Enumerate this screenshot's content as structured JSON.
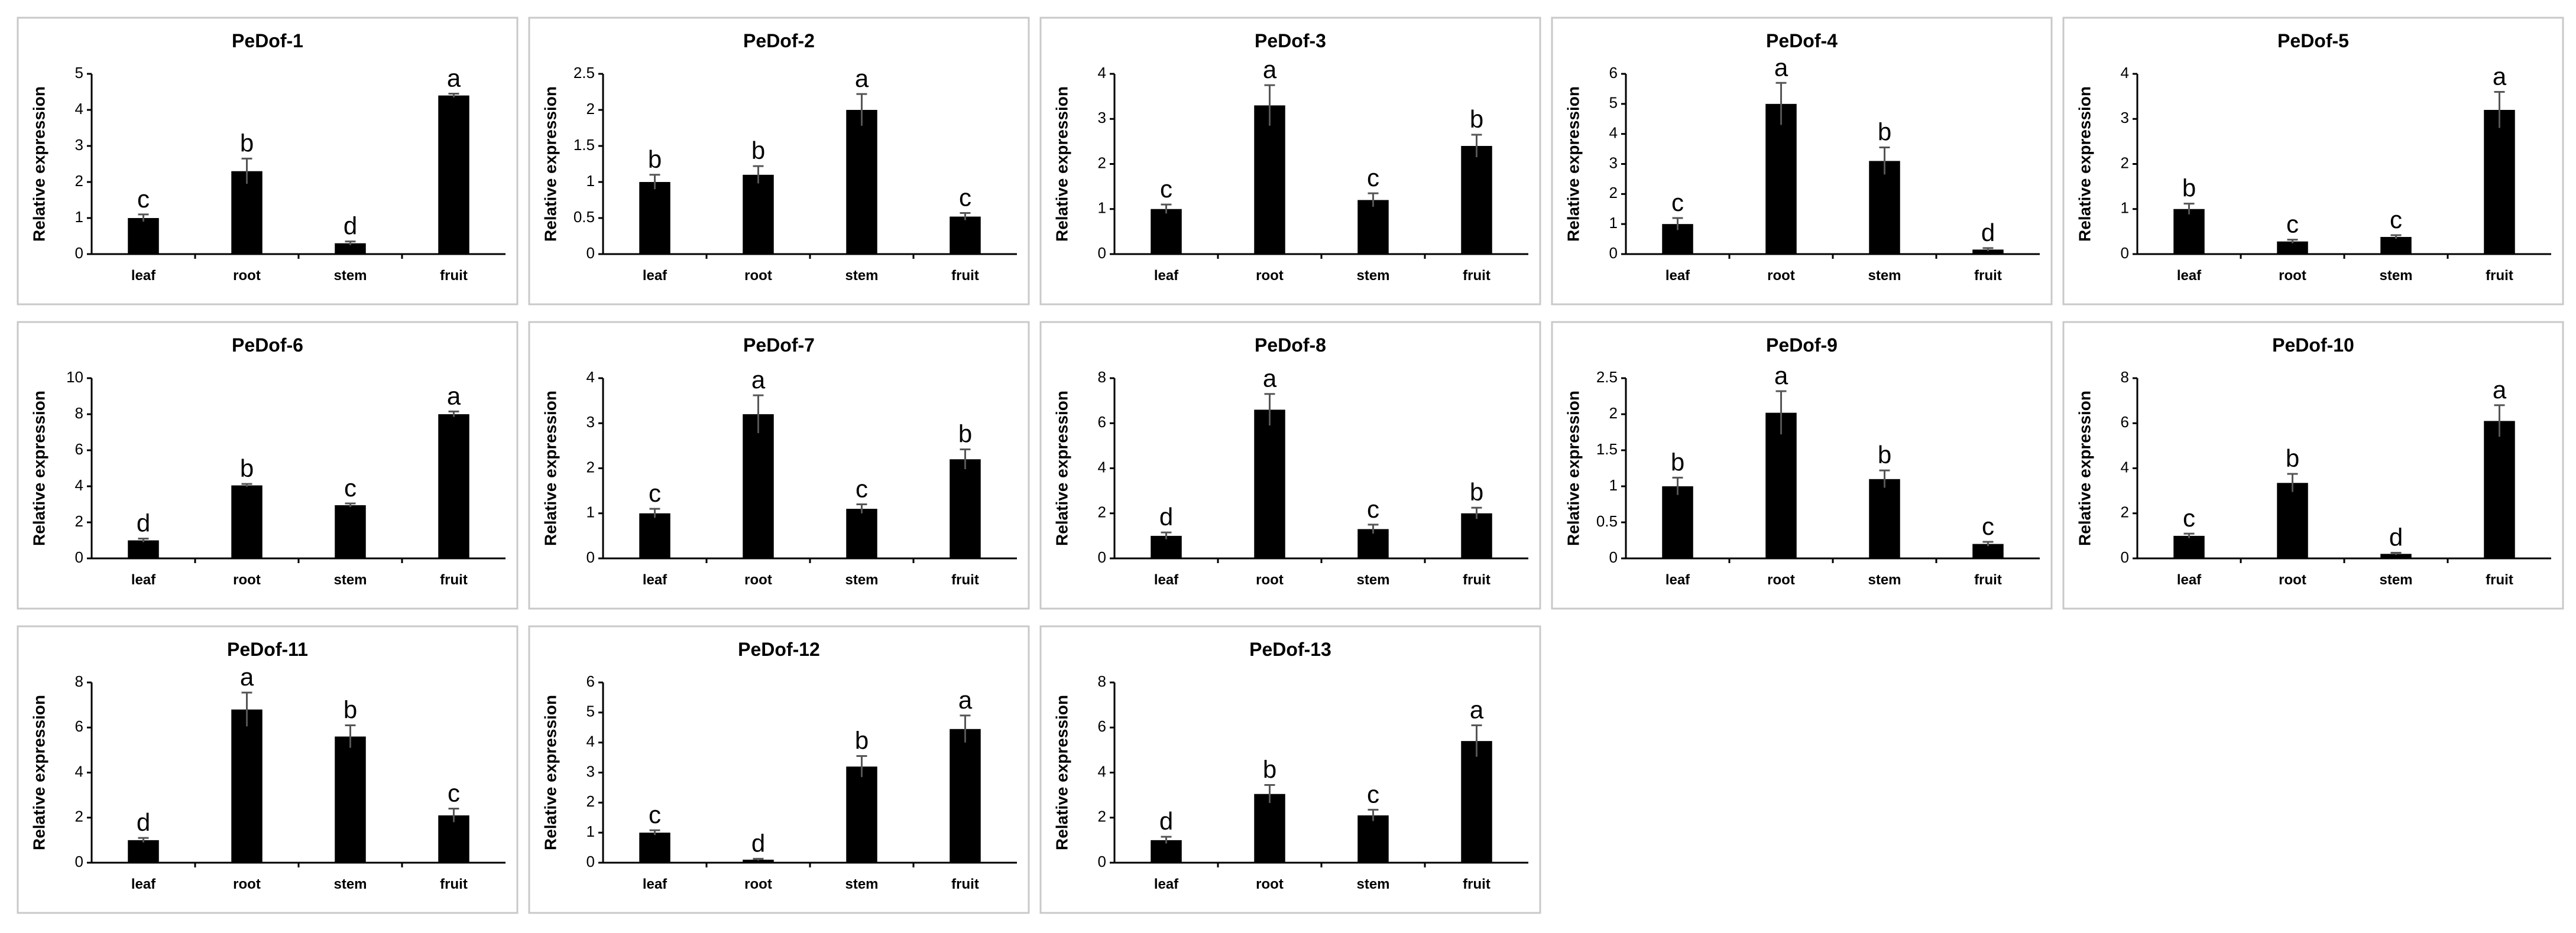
{
  "chart_data": [
    {
      "type": "bar",
      "title": "PeDof-1",
      "ylabel": "Relative expression",
      "xlabel": "",
      "categories": [
        "leaf",
        "root",
        "stem",
        "fruit"
      ],
      "values": [
        1.0,
        2.3,
        0.3,
        4.4
      ],
      "errors": [
        0.1,
        0.35,
        0.05,
        0.05
      ],
      "letters": [
        "c",
        "b",
        "d",
        "a"
      ],
      "ylim": [
        0,
        5
      ],
      "yticks": [
        "0",
        "1",
        "2",
        "3",
        "4",
        "5"
      ],
      "ytick_values": [
        0,
        1,
        2,
        3,
        4,
        5
      ]
    },
    {
      "type": "bar",
      "title": "PeDof-2",
      "ylabel": "Relative expression",
      "xlabel": "",
      "categories": [
        "leaf",
        "root",
        "stem",
        "fruit"
      ],
      "values": [
        1.0,
        1.1,
        2.0,
        0.52
      ],
      "errors": [
        0.1,
        0.12,
        0.22,
        0.05
      ],
      "letters": [
        "b",
        "b",
        "a",
        "c"
      ],
      "ylim": [
        0,
        2.5
      ],
      "yticks": [
        "0",
        "0.5",
        "1",
        "1.5",
        "2",
        "2.5"
      ],
      "ytick_values": [
        0,
        0.5,
        1,
        1.5,
        2,
        2.5
      ]
    },
    {
      "type": "bar",
      "title": "PeDof-3",
      "ylabel": "Relative expression",
      "xlabel": "",
      "categories": [
        "leaf",
        "root",
        "stem",
        "fruit"
      ],
      "values": [
        1.0,
        3.3,
        1.2,
        2.4
      ],
      "errors": [
        0.1,
        0.45,
        0.15,
        0.25
      ],
      "letters": [
        "c",
        "a",
        "c",
        "b"
      ],
      "ylim": [
        0,
        4
      ],
      "yticks": [
        "0",
        "1",
        "2",
        "3",
        "4"
      ],
      "ytick_values": [
        0,
        1,
        2,
        3,
        4
      ]
    },
    {
      "type": "bar",
      "title": "PeDof-4",
      "ylabel": "Relative expression",
      "xlabel": "",
      "categories": [
        "leaf",
        "root",
        "stem",
        "fruit"
      ],
      "values": [
        1.0,
        5.0,
        3.1,
        0.15
      ],
      "errors": [
        0.2,
        0.7,
        0.45,
        0.05
      ],
      "letters": [
        "c",
        "a",
        "b",
        "d"
      ],
      "ylim": [
        0,
        6
      ],
      "yticks": [
        "0",
        "1",
        "2",
        "3",
        "4",
        "5",
        "6"
      ],
      "ytick_values": [
        0,
        1,
        2,
        3,
        4,
        5,
        6
      ]
    },
    {
      "type": "bar",
      "title": "PeDof-5",
      "ylabel": "Relative expression",
      "xlabel": "",
      "categories": [
        "leaf",
        "root",
        "stem",
        "fruit"
      ],
      "values": [
        1.0,
        0.28,
        0.38,
        3.2
      ],
      "errors": [
        0.12,
        0.04,
        0.04,
        0.4
      ],
      "letters": [
        "b",
        "c",
        "c",
        "a"
      ],
      "ylim": [
        0,
        4
      ],
      "yticks": [
        "0",
        "1",
        "2",
        "3",
        "4"
      ],
      "ytick_values": [
        0,
        1,
        2,
        3,
        4
      ]
    },
    {
      "type": "bar",
      "title": "PeDof-6",
      "ylabel": "Relative expression",
      "xlabel": "",
      "categories": [
        "leaf",
        "root",
        "stem",
        "fruit"
      ],
      "values": [
        1.0,
        4.05,
        2.95,
        8.0
      ],
      "errors": [
        0.1,
        0.08,
        0.1,
        0.15
      ],
      "letters": [
        "d",
        "b",
        "c",
        "a"
      ],
      "ylim": [
        0,
        10
      ],
      "yticks": [
        "0",
        "2",
        "4",
        "6",
        "8",
        "10"
      ],
      "ytick_values": [
        0,
        2,
        4,
        6,
        8,
        10
      ]
    },
    {
      "type": "bar",
      "title": "PeDof-7",
      "ylabel": "Relative expression",
      "xlabel": "",
      "categories": [
        "leaf",
        "root",
        "stem",
        "fruit"
      ],
      "values": [
        1.0,
        3.2,
        1.1,
        2.2
      ],
      "errors": [
        0.1,
        0.42,
        0.1,
        0.22
      ],
      "letters": [
        "c",
        "a",
        "c",
        "b"
      ],
      "ylim": [
        0,
        4
      ],
      "yticks": [
        "0",
        "1",
        "2",
        "3",
        "4"
      ],
      "ytick_values": [
        0,
        1,
        2,
        3,
        4
      ]
    },
    {
      "type": "bar",
      "title": "PeDof-8",
      "ylabel": "Relative expression",
      "xlabel": "",
      "categories": [
        "leaf",
        "root",
        "stem",
        "fruit"
      ],
      "values": [
        1.0,
        6.6,
        1.3,
        2.0
      ],
      "errors": [
        0.15,
        0.7,
        0.2,
        0.25
      ],
      "letters": [
        "d",
        "a",
        "c",
        "b"
      ],
      "ylim": [
        0,
        8
      ],
      "yticks": [
        "0",
        "2",
        "4",
        "6",
        "8"
      ],
      "ytick_values": [
        0,
        2,
        4,
        6,
        8
      ]
    },
    {
      "type": "bar",
      "title": "PeDof-9",
      "ylabel": "Relative expression",
      "xlabel": "",
      "categories": [
        "leaf",
        "root",
        "stem",
        "fruit"
      ],
      "values": [
        1.0,
        2.02,
        1.1,
        0.2
      ],
      "errors": [
        0.12,
        0.3,
        0.12,
        0.03
      ],
      "letters": [
        "b",
        "a",
        "b",
        "c"
      ],
      "ylim": [
        0,
        2.5
      ],
      "yticks": [
        "0",
        "0.5",
        "1",
        "1.5",
        "2",
        "2.5"
      ],
      "ytick_values": [
        0,
        0.5,
        1,
        1.5,
        2,
        2.5
      ]
    },
    {
      "type": "bar",
      "title": "PeDof-10",
      "ylabel": "Relative expression",
      "xlabel": "",
      "categories": [
        "leaf",
        "root",
        "stem",
        "fruit"
      ],
      "values": [
        1.0,
        3.35,
        0.2,
        6.1
      ],
      "errors": [
        0.1,
        0.4,
        0.05,
        0.7
      ],
      "letters": [
        "c",
        "b",
        "d",
        "a"
      ],
      "ylim": [
        0,
        8
      ],
      "yticks": [
        "0",
        "2",
        "4",
        "6",
        "8"
      ],
      "ytick_values": [
        0,
        2,
        4,
        6,
        8
      ]
    },
    {
      "type": "bar",
      "title": "PeDof-11",
      "ylabel": "Relative expression",
      "xlabel": "",
      "categories": [
        "leaf",
        "root",
        "stem",
        "fruit"
      ],
      "values": [
        1.0,
        6.8,
        5.6,
        2.1
      ],
      "errors": [
        0.1,
        0.75,
        0.5,
        0.3
      ],
      "letters": [
        "d",
        "a",
        "b",
        "c"
      ],
      "ylim": [
        0,
        8
      ],
      "yticks": [
        "0",
        "2",
        "4",
        "6",
        "8"
      ],
      "ytick_values": [
        0,
        2,
        4,
        6,
        8
      ]
    },
    {
      "type": "bar",
      "title": "PeDof-12",
      "ylabel": "Relative expression",
      "xlabel": "",
      "categories": [
        "leaf",
        "root",
        "stem",
        "fruit"
      ],
      "values": [
        1.0,
        0.1,
        3.2,
        4.45
      ],
      "errors": [
        0.08,
        0.03,
        0.35,
        0.45
      ],
      "letters": [
        "c",
        "d",
        "b",
        "a"
      ],
      "ylim": [
        0,
        6
      ],
      "yticks": [
        "0",
        "1",
        "2",
        "3",
        "4",
        "5",
        "6"
      ],
      "ytick_values": [
        0,
        1,
        2,
        3,
        4,
        5,
        6
      ]
    },
    {
      "type": "bar",
      "title": "PeDof-13",
      "ylabel": "Relative expression",
      "xlabel": "",
      "categories": [
        "leaf",
        "root",
        "stem",
        "fruit"
      ],
      "values": [
        1.0,
        3.05,
        2.1,
        5.4
      ],
      "errors": [
        0.15,
        0.4,
        0.25,
        0.7
      ],
      "letters": [
        "d",
        "b",
        "c",
        "a"
      ],
      "ylim": [
        0,
        8
      ],
      "yticks": [
        "0",
        "2",
        "4",
        "6",
        "8"
      ],
      "ytick_values": [
        0,
        2,
        4,
        6,
        8
      ]
    }
  ]
}
